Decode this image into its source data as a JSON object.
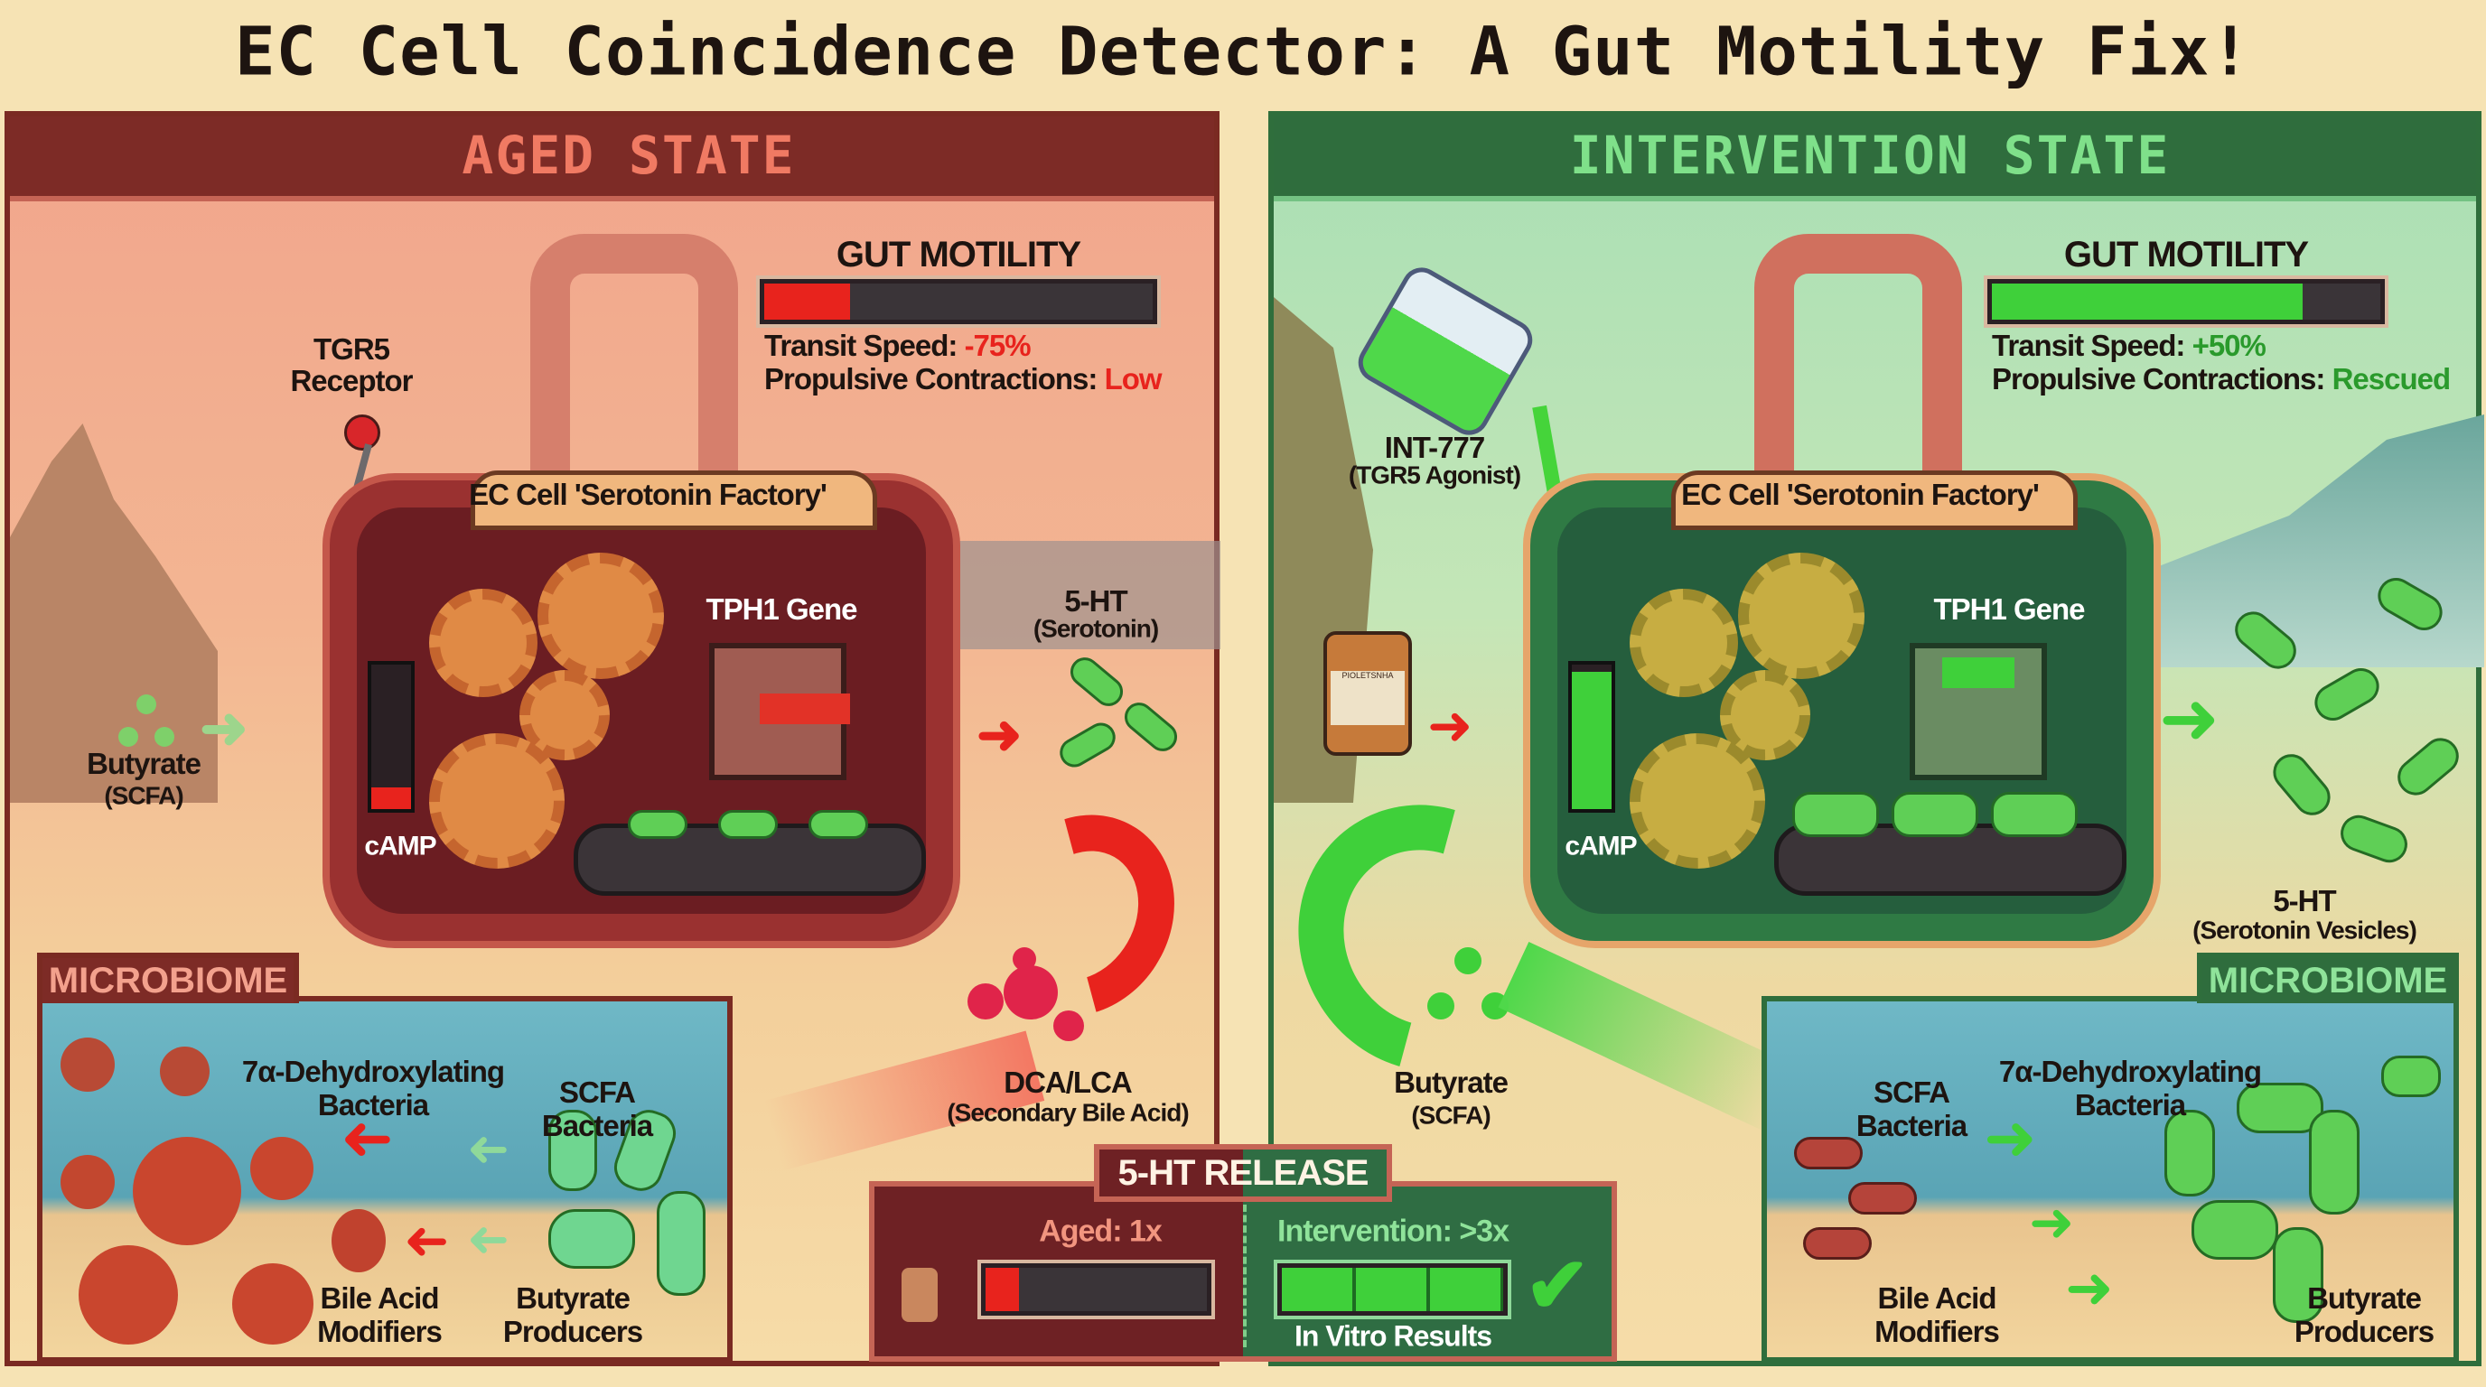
{
  "title": "EC Cell Coincidence Detector: A Gut Motility Fix!",
  "colors": {
    "aged_accent": "#e8231d",
    "intervention_accent": "#3fd03a",
    "aged_frame": "#7d2b26",
    "intervention_frame": "#2f6d3d",
    "background": "#f6e3b4"
  },
  "aged": {
    "header": "AGED STATE",
    "gut_motility": {
      "title": "GUT MOTILITY",
      "level_percent": 22,
      "transit_label": "Transit Speed:",
      "transit_value": "-75%",
      "contractions_label": "Propulsive Contractions:",
      "contractions_value": "Low"
    },
    "receptor_label_1": "TGR5",
    "receptor_label_2": "Receptor",
    "cell_label": "EC Cell 'Serotonin Factory'",
    "gene_label": "TPH1 Gene",
    "camp_label": "cAMP",
    "camp_level_percent": 15,
    "serotonin_label_1": "5-HT",
    "serotonin_label_2": "(Serotonin)",
    "butyrate_label_1": "Butyrate",
    "butyrate_label_2": "(SCFA)",
    "bile_label_1": "DCA/LCA",
    "bile_label_2": "(Secondary Bile Acid)",
    "microbiome": {
      "tab": "MICROBIOME",
      "dehydrox_1": "7α-Dehydroxylating",
      "dehydrox_2": "Bacteria",
      "scfa_1": "SCFA",
      "scfa_2": "Bacteria",
      "bile_1": "Bile Acid",
      "bile_2": "Modifiers",
      "butyrate_1": "Butyrate",
      "butyrate_2": "Producers"
    }
  },
  "intervention": {
    "header": "INTERVENTION STATE",
    "gut_motility": {
      "title": "GUT MOTILITY",
      "level_percent": 80,
      "transit_label": "Transit Speed:",
      "transit_value": "+50%",
      "contractions_label": "Propulsive Contractions:",
      "contractions_value": "Rescued"
    },
    "agonist_label_1": "INT-777",
    "agonist_label_2": "(TGR5 Agonist)",
    "cell_label": "EC Cell 'Serotonin Factory'",
    "gene_label": "TPH1 Gene",
    "camp_label": "cAMP",
    "camp_level_percent": 95,
    "serotonin_label_1": "5-HT",
    "serotonin_label_2": "(Serotonin Vesicles)",
    "butyrate_label_1": "Butyrate",
    "butyrate_label_2": "(SCFA)",
    "bottle_label": "PIOLETSNHA",
    "microbiome": {
      "tab": "MICROBIOME",
      "dehydrox_1": "7α-Dehydroxylating",
      "dehydrox_2": "Bacteria",
      "scfa_1": "SCFA",
      "scfa_2": "Bacteria",
      "bile_1": "Bile Acid",
      "bile_2": "Modifiers",
      "butyrate_1": "Butyrate",
      "butyrate_2": "Producers"
    }
  },
  "release": {
    "tab": "5-HT RELEASE",
    "aged_label": "Aged: 1x",
    "aged_level_percent": 15,
    "intervention_label": "Intervention: >3x",
    "intervention_level_percent": 100,
    "intervention_footer": "In Vitro Results",
    "check_icon": "checkmark-icon"
  }
}
